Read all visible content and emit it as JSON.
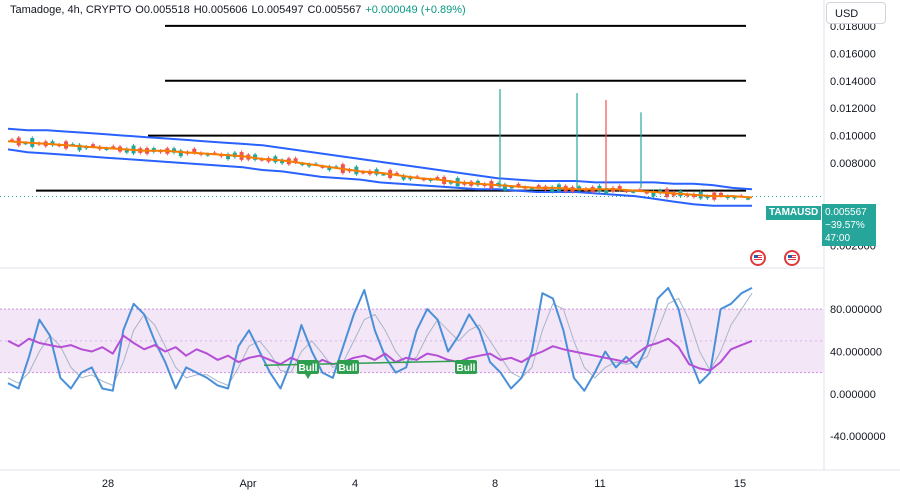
{
  "header": {
    "title": "Tamadoge, 4h, CRYPTO",
    "open": "O0.005518",
    "high": "H0.005606",
    "low": "L0.005497",
    "close": "C0.005567",
    "change": "+0.000049 (+0.89%)",
    "currency_button": "USD"
  },
  "price_tag": {
    "symbol": "TAMAUSD",
    "price": "0.005567",
    "change_pct": "−39.57%",
    "countdown": "47:00"
  },
  "colors": {
    "up": "#26a69a",
    "down": "#ef5350",
    "band": "#2962ff",
    "ema": "#f57c00",
    "stoch_k": "#4a90d9",
    "stoch_d": "#aab4c8",
    "rsi": "#b44fd6",
    "rsi_band_fill": "#f3e6f7",
    "bull_label": "#2e9e4f"
  },
  "chart_data": [
    {
      "type": "candlestick",
      "title": "",
      "x_ticks": [
        "28",
        "Apr",
        "4",
        "8",
        "11",
        "15"
      ],
      "y_ticks": [
        "0.018000",
        "0.016000",
        "0.014000",
        "0.012000",
        "0.010000",
        "0.008000",
        "0.002000"
      ],
      "ylim": [
        0.0008,
        0.0193
      ],
      "horizontal_lines": [
        0.018,
        0.014,
        0.01,
        0.006
      ],
      "upper_band": [
        0.0105,
        0.0104,
        0.0104,
        0.0103,
        0.0102,
        0.0101,
        0.01,
        0.0099,
        0.0098,
        0.0097,
        0.0096,
        0.0095,
        0.0094,
        0.0093,
        0.0091,
        0.0089,
        0.0087,
        0.0085,
        0.0083,
        0.0081,
        0.0079,
        0.0077,
        0.0075,
        0.0073,
        0.0071,
        0.0069,
        0.0068,
        0.0067,
        0.0067,
        0.0067,
        0.0066,
        0.0066,
        0.0066,
        0.0066,
        0.0065,
        0.0065,
        0.0064,
        0.0062,
        0.0061
      ],
      "middle_ema": [
        0.0096,
        0.0095,
        0.0094,
        0.0093,
        0.0092,
        0.0091,
        0.009,
        0.0089,
        0.0089,
        0.0088,
        0.0087,
        0.0086,
        0.0085,
        0.0083,
        0.0082,
        0.008,
        0.0078,
        0.0076,
        0.0074,
        0.0073,
        0.0071,
        0.0069,
        0.0068,
        0.0066,
        0.0065,
        0.0064,
        0.0063,
        0.0062,
        0.0062,
        0.0061,
        0.0061,
        0.0061,
        0.006,
        0.0059,
        0.0058,
        0.0057,
        0.0056,
        0.0056,
        0.0055
      ],
      "lower_band": [
        0.009,
        0.0088,
        0.0087,
        0.0086,
        0.0085,
        0.0084,
        0.0083,
        0.0082,
        0.0081,
        0.008,
        0.0079,
        0.0078,
        0.0077,
        0.0075,
        0.0074,
        0.0072,
        0.007,
        0.0069,
        0.0068,
        0.0066,
        0.0065,
        0.0064,
        0.0063,
        0.0062,
        0.0061,
        0.0061,
        0.006,
        0.0059,
        0.0059,
        0.0059,
        0.0058,
        0.0057,
        0.0056,
        0.0054,
        0.0052,
        0.005,
        0.0049,
        0.0049,
        0.0049
      ],
      "wick_spikes": [
        {
          "value": 0.0134,
          "color": "up"
        },
        {
          "value": 0.0131,
          "color": "up"
        },
        {
          "value": 0.0126,
          "color": "down"
        },
        {
          "value": 0.0117,
          "color": "up"
        }
      ],
      "last_price": 0.005567
    },
    {
      "type": "line",
      "title": "",
      "y_ticks": [
        "80.000000",
        "40.000000",
        "0.000000",
        "-40.000000"
      ],
      "ylim": [
        -70,
        115
      ],
      "band_range": [
        20,
        80
      ],
      "stoch_k": [
        10,
        5,
        35,
        70,
        55,
        15,
        5,
        20,
        25,
        5,
        3,
        60,
        85,
        75,
        50,
        30,
        5,
        25,
        20,
        15,
        8,
        5,
        45,
        60,
        40,
        20,
        5,
        30,
        65,
        40,
        20,
        15,
        45,
        75,
        98,
        60,
        35,
        20,
        25,
        60,
        80,
        70,
        40,
        55,
        75,
        60,
        30,
        20,
        5,
        15,
        40,
        95,
        90,
        60,
        15,
        3,
        20,
        40,
        25,
        35,
        25,
        45,
        90,
        100,
        80,
        35,
        10,
        20,
        80,
        85,
        95,
        100
      ],
      "stoch_d": [
        15,
        10,
        20,
        40,
        55,
        45,
        25,
        15,
        18,
        12,
        8,
        30,
        60,
        75,
        65,
        45,
        25,
        15,
        18,
        18,
        12,
        8,
        25,
        45,
        50,
        38,
        22,
        20,
        40,
        50,
        38,
        25,
        30,
        50,
        70,
        75,
        60,
        40,
        28,
        35,
        55,
        70,
        60,
        50,
        60,
        65,
        50,
        35,
        20,
        15,
        25,
        60,
        85,
        80,
        50,
        25,
        15,
        25,
        30,
        28,
        30,
        35,
        60,
        85,
        90,
        70,
        40,
        22,
        40,
        65,
        80,
        95
      ],
      "rsi": [
        50,
        45,
        52,
        48,
        46,
        44,
        46,
        42,
        40,
        44,
        38,
        55,
        48,
        42,
        46,
        40,
        44,
        36,
        42,
        38,
        32,
        36,
        30,
        34,
        36,
        32,
        28,
        34,
        30,
        26,
        32,
        28,
        30,
        34,
        36,
        32,
        38,
        30,
        34,
        32,
        38,
        36,
        32,
        30,
        34,
        36,
        38,
        32,
        34,
        30,
        36,
        40,
        45,
        42,
        40,
        38,
        36,
        34,
        32,
        30,
        38,
        45,
        48,
        52,
        44,
        28,
        24,
        22,
        30,
        42,
        46,
        50
      ]
    }
  ],
  "price_axis_label": "USD",
  "time_labels": {
    "t28": "28",
    "apr": "Apr",
    "t4": "4",
    "t8": "8",
    "t11": "11",
    "t15": "15"
  },
  "bull_labels": [
    "Bull",
    "Bull",
    "Bull"
  ],
  "osc_ticks": {
    "a": "80.000000",
    "b": "40.000000",
    "c": "0.000000",
    "d": "-40.000000"
  },
  "price_ticks": {
    "a": "0.018000",
    "b": "0.016000",
    "c": "0.014000",
    "d": "0.012000",
    "e": "0.010000",
    "f": "0.008000",
    "g": "0.002000"
  }
}
